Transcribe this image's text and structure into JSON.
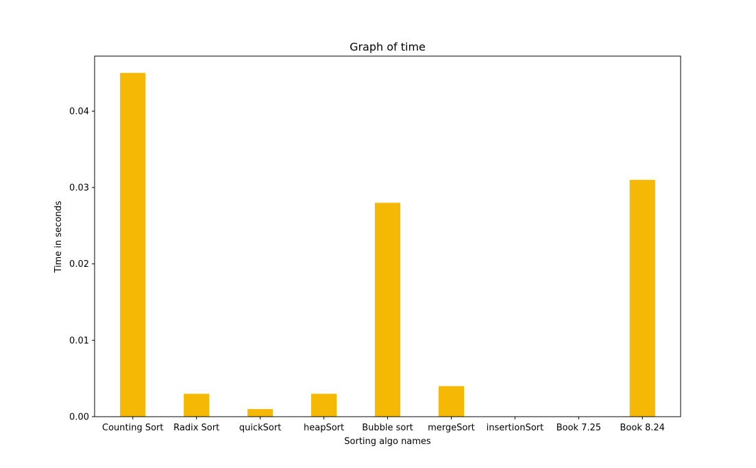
{
  "chart_data": {
    "type": "bar",
    "title": "Graph of time",
    "xlabel": "Sorting algo names",
    "ylabel": "Time in seconds",
    "categories": [
      "Counting Sort",
      "Radix Sort",
      "quickSort",
      "heapSort",
      "Bubble sort",
      "mergeSort",
      "insertionSort",
      "Book 7.25",
      "Book 8.24"
    ],
    "values": [
      0.045,
      0.003,
      0.001,
      0.003,
      0.028,
      0.004,
      0.0,
      0.0,
      0.031
    ],
    "ylim": [
      0,
      0.0472
    ],
    "yticks": [
      0.0,
      0.01,
      0.02,
      0.03,
      0.04
    ],
    "ytick_labels": [
      "0.00",
      "0.01",
      "0.02",
      "0.03",
      "0.04"
    ],
    "bar_color": "#f5b805",
    "grid": false
  }
}
